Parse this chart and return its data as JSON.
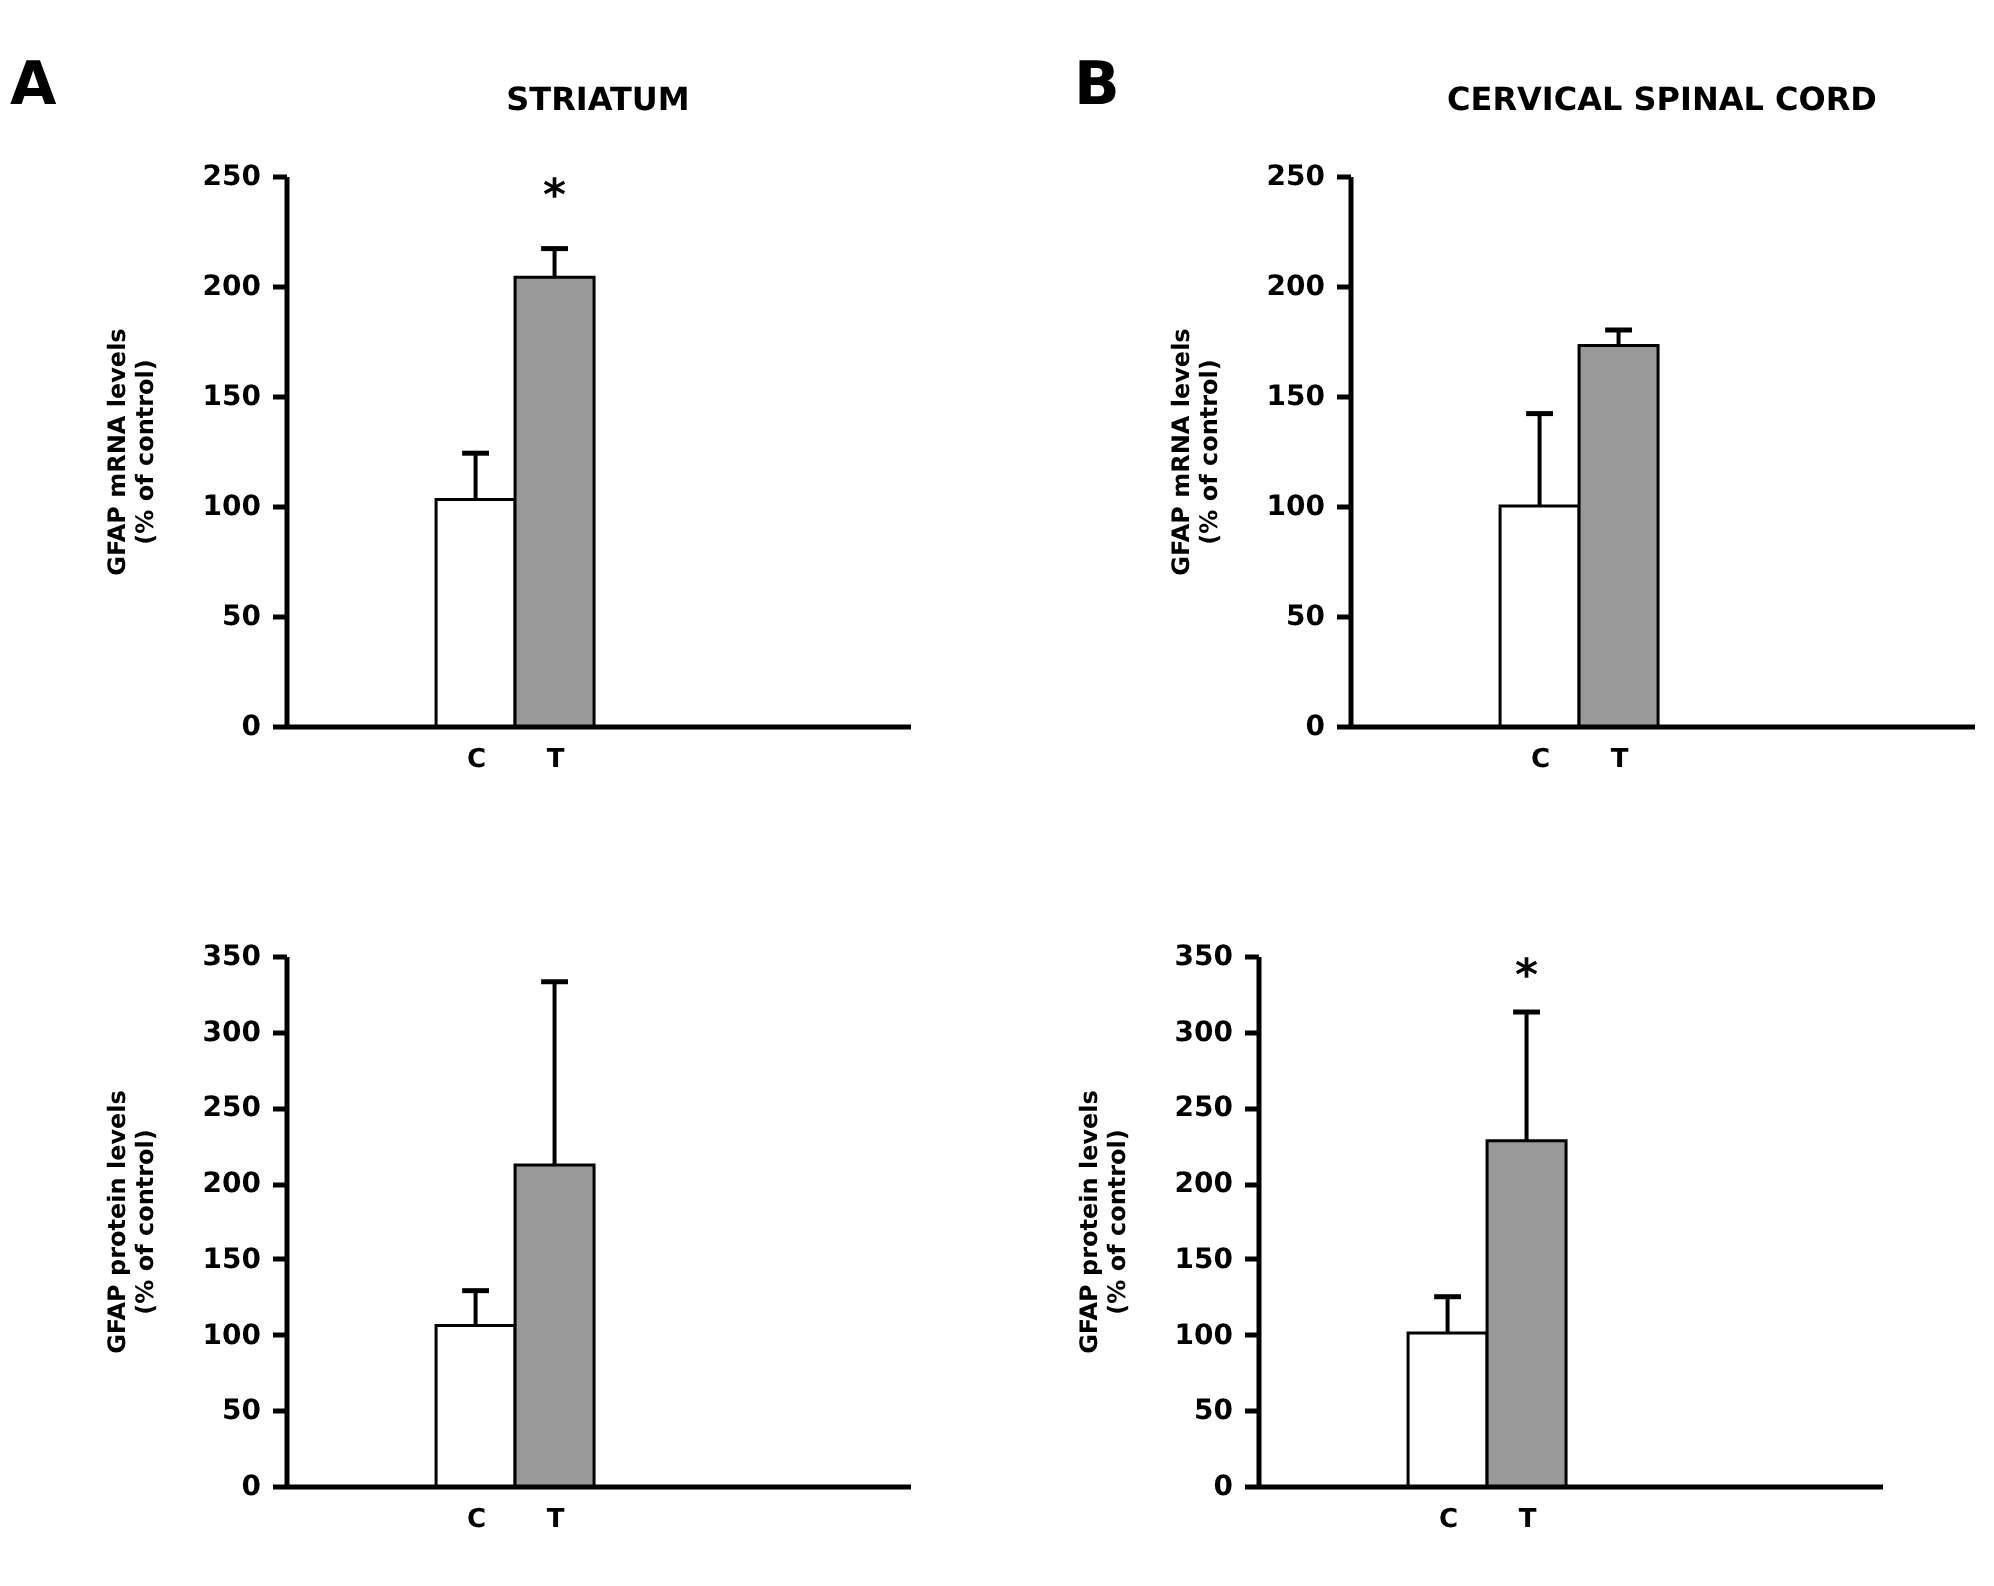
{
  "chart_data": [
    {
      "type": "bar",
      "title": "STRIATUM",
      "annotations": [
        "A",
        "*"
      ],
      "ylabel": "GFAP mRNA levels\n(% of control)",
      "categories": [
        "C",
        "T"
      ],
      "values": [
        103,
        204
      ],
      "errors": [
        [
          103,
          124
        ],
        [
          204,
          217
        ]
      ],
      "colors": [
        "#ffffff",
        "#999999"
      ],
      "ylim": [
        0,
        250
      ],
      "yticks": [
        0,
        50,
        100,
        150,
        200,
        250
      ],
      "grid": false
    },
    {
      "type": "bar",
      "title": "CERVICAL SPINAL CORD",
      "annotations": [
        "B"
      ],
      "ylabel": "GFAP mRNA levels\n(% of control)",
      "categories": [
        "C",
        "T"
      ],
      "values": [
        100,
        173
      ],
      "errors": [
        [
          100,
          142
        ],
        [
          173,
          180
        ]
      ],
      "colors": [
        "#ffffff",
        "#999999"
      ],
      "ylim": [
        0,
        250
      ],
      "yticks": [
        0,
        50,
        100,
        150,
        200,
        250
      ],
      "grid": false
    },
    {
      "type": "bar",
      "ylabel": "GFAP protein levels\n(% of control)",
      "categories": [
        "C",
        "T"
      ],
      "values": [
        106,
        212
      ],
      "errors": [
        [
          106,
          129
        ],
        [
          212,
          333
        ]
      ],
      "colors": [
        "#ffffff",
        "#999999"
      ],
      "ylim": [
        0,
        350
      ],
      "yticks": [
        0,
        50,
        100,
        150,
        200,
        250,
        300,
        350
      ],
      "grid": false
    },
    {
      "type": "bar",
      "annotations": [
        "*"
      ],
      "ylabel": "GFAP protein levels\n(% of control)",
      "categories": [
        "C",
        "T"
      ],
      "values": [
        101,
        228
      ],
      "errors": [
        [
          101,
          125
        ],
        [
          228,
          313
        ]
      ],
      "colors": [
        "#ffffff",
        "#999999"
      ],
      "ylim": [
        0,
        350
      ],
      "yticks": [
        0,
        50,
        100,
        150,
        200,
        250,
        300,
        350
      ],
      "grid": false
    }
  ]
}
